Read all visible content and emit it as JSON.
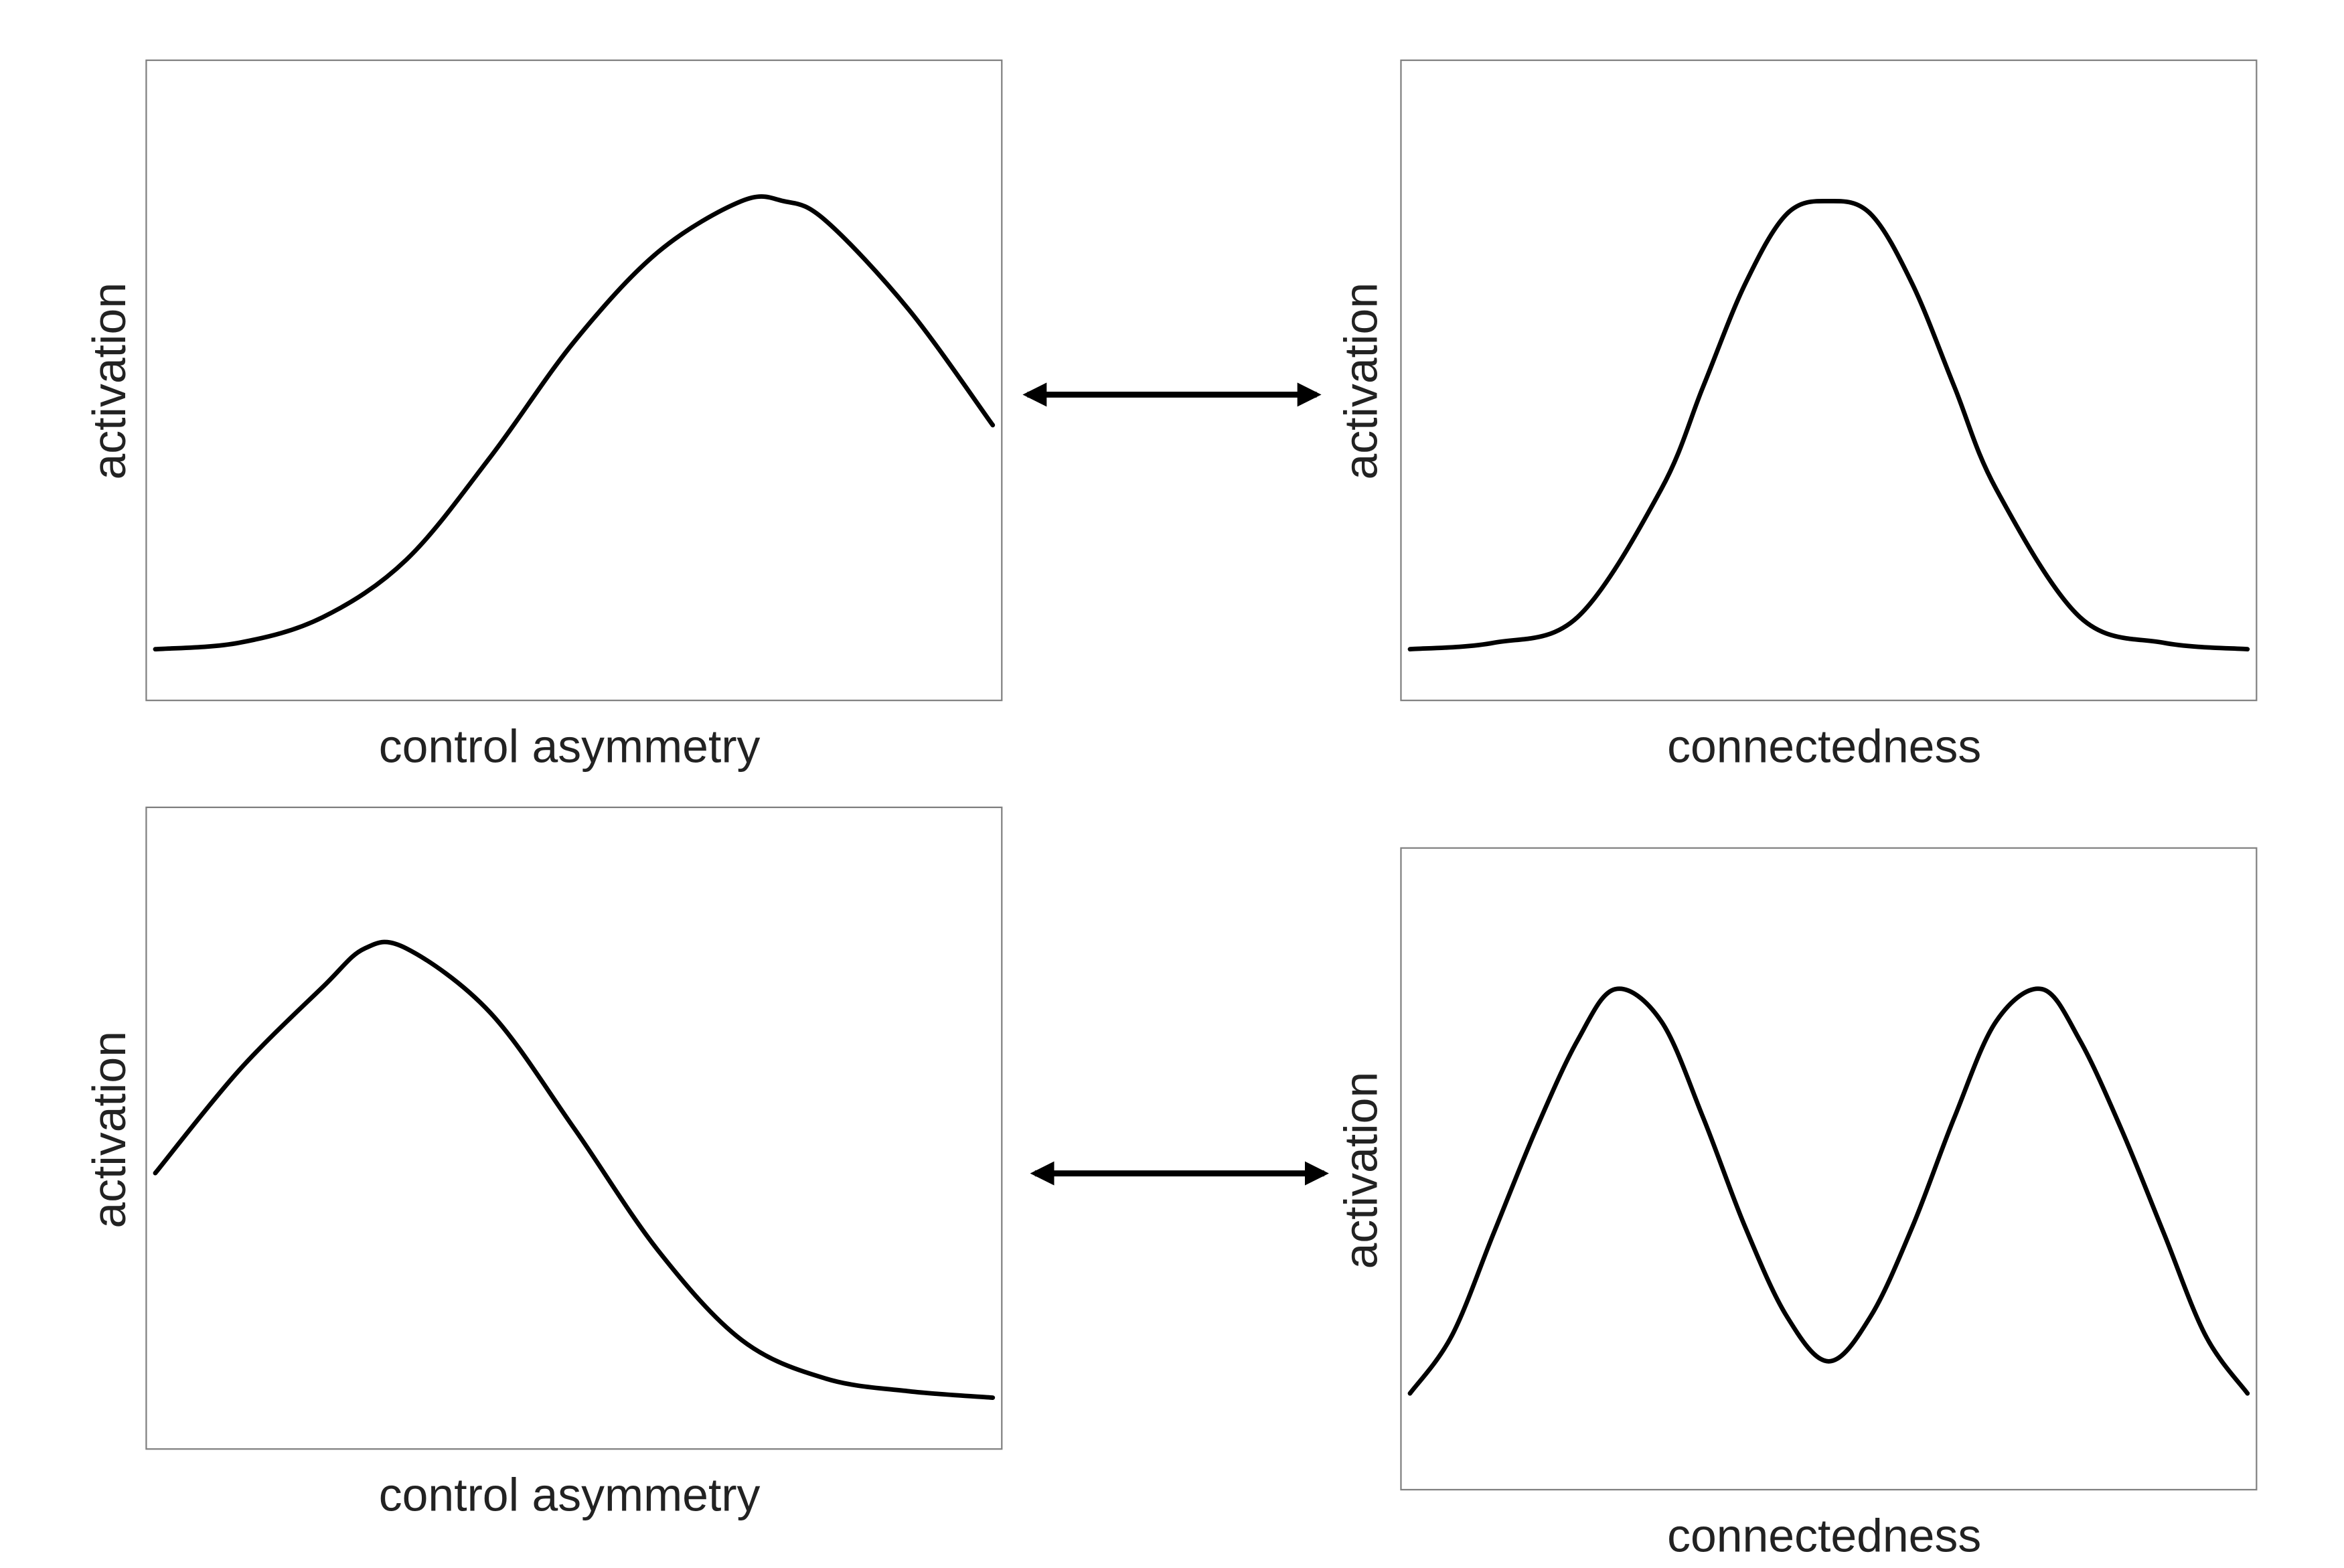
{
  "chart_data": [
    {
      "type": "line",
      "title": "",
      "xlabel": "control asymmetry",
      "ylabel": "activation",
      "xlim": [
        0,
        1
      ],
      "ylim": [
        0,
        1
      ],
      "grid": false,
      "series": [
        {
          "x": [
            0.0,
            0.1,
            0.2,
            0.3,
            0.4,
            0.5,
            0.6,
            0.7,
            0.75,
            0.8,
            0.9,
            1.0
          ],
          "y": [
            0.08,
            0.09,
            0.13,
            0.22,
            0.38,
            0.56,
            0.7,
            0.78,
            0.78,
            0.75,
            0.61,
            0.43
          ]
        }
      ]
    },
    {
      "type": "line",
      "title": "",
      "xlabel": "connectedness",
      "ylabel": "activation",
      "xlim": [
        0,
        1
      ],
      "ylim": [
        0,
        1
      ],
      "grid": false,
      "series": [
        {
          "x": [
            0.0,
            0.1,
            0.2,
            0.3,
            0.35,
            0.4,
            0.45,
            0.5,
            0.55,
            0.6,
            0.65,
            0.7,
            0.8,
            0.9,
            1.0
          ],
          "y": [
            0.08,
            0.09,
            0.13,
            0.33,
            0.49,
            0.65,
            0.76,
            0.78,
            0.76,
            0.65,
            0.49,
            0.33,
            0.13,
            0.09,
            0.08
          ]
        }
      ]
    },
    {
      "type": "line",
      "title": "",
      "xlabel": "control asymmetry",
      "ylabel": "activation",
      "xlim": [
        0,
        1
      ],
      "ylim": [
        0,
        1
      ],
      "grid": false,
      "series": [
        {
          "x": [
            0.0,
            0.1,
            0.2,
            0.25,
            0.3,
            0.4,
            0.5,
            0.6,
            0.7,
            0.8,
            0.9,
            1.0
          ],
          "y": [
            0.43,
            0.59,
            0.72,
            0.78,
            0.78,
            0.68,
            0.5,
            0.31,
            0.17,
            0.11,
            0.09,
            0.08
          ]
        }
      ]
    },
    {
      "type": "line",
      "title": "",
      "xlabel": "connectedness",
      "ylabel": "activation",
      "xlim": [
        0,
        1
      ],
      "ylim": [
        0,
        1
      ],
      "grid": false,
      "series": [
        {
          "x": [
            0.0,
            0.05,
            0.1,
            0.15,
            0.2,
            0.245,
            0.3,
            0.35,
            0.4,
            0.45,
            0.5,
            0.55,
            0.6,
            0.65,
            0.7,
            0.755,
            0.8,
            0.85,
            0.9,
            0.95,
            1.0
          ],
          "y": [
            0.15,
            0.24,
            0.4,
            0.56,
            0.7,
            0.78,
            0.73,
            0.58,
            0.41,
            0.27,
            0.2,
            0.27,
            0.41,
            0.58,
            0.73,
            0.78,
            0.7,
            0.56,
            0.4,
            0.24,
            0.15
          ]
        }
      ]
    }
  ],
  "connectors": [
    {
      "type": "double-headed-arrow",
      "links": "panel 1 - panel 2"
    },
    {
      "type": "double-headed-arrow",
      "links": "panel 3 - panel 4"
    }
  ],
  "colors": {
    "curve": "#000000",
    "frame": "#808080",
    "text": "#222222",
    "arrow": "#000000"
  }
}
